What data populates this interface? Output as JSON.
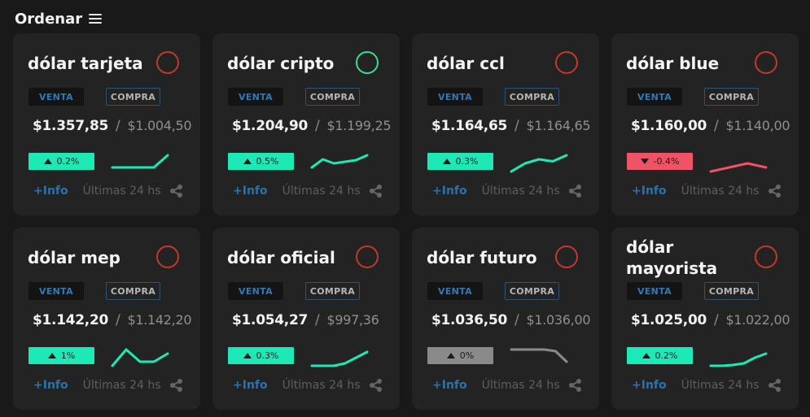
{
  "header": {
    "title": "Ordenar",
    "menu_icon": "hamburger-menu-icon"
  },
  "colors": {
    "up": "#1de9b6",
    "down": "#ef5465",
    "flat": "#8a8a8a",
    "fav_off": "#c0392b",
    "fav_on": "#3ddc84",
    "link": "#2a72ad"
  },
  "labels": {
    "venta": "VENTA",
    "compra": "COMPRA",
    "info": "+Info",
    "period": "Últimas 24 hs"
  },
  "cards": [
    {
      "title": "dólar tarjeta",
      "favorite": false,
      "venta": "$1.357,85",
      "compra": "$1.004,50",
      "change": "0.2%",
      "trend": "up",
      "spark": [
        2,
        2,
        2,
        2,
        5
      ]
    },
    {
      "title": "dólar cripto",
      "favorite": true,
      "venta": "$1.204,90",
      "compra": "$1.199,25",
      "change": "0.5%",
      "trend": "up",
      "spark": [
        2,
        4,
        3,
        3.4,
        3.8,
        5
      ]
    },
    {
      "title": "dólar ccl",
      "favorite": false,
      "venta": "$1.164,65",
      "compra": "$1.164,65",
      "change": "0.3%",
      "trend": "up",
      "spark": [
        1,
        3,
        4,
        3.5,
        5
      ]
    },
    {
      "title": "dólar blue",
      "favorite": false,
      "venta": "$1.160,00",
      "compra": "$1.140,00",
      "change": "-0.4%",
      "trend": "down",
      "spark": [
        1,
        2,
        3,
        2
      ]
    },
    {
      "title": "dólar mep",
      "favorite": false,
      "venta": "$1.142,20",
      "compra": "$1.142,20",
      "change": "1%",
      "trend": "up",
      "spark": [
        1,
        5,
        2,
        2,
        4
      ]
    },
    {
      "title": "dólar oficial",
      "favorite": false,
      "venta": "$1.054,27",
      "compra": "$997,36",
      "change": "0.3%",
      "trend": "up",
      "spark": [
        1,
        1,
        1,
        1.6,
        3,
        4.4
      ]
    },
    {
      "title": "dólar futuro",
      "favorite": false,
      "venta": "$1.036,50",
      "compra": "$1.036,00",
      "change": "0%",
      "trend": "flat",
      "spark": [
        5,
        5,
        5,
        5,
        4.6,
        2
      ]
    },
    {
      "title": "dólar mayorista",
      "favorite": false,
      "venta": "$1.025,00",
      "compra": "$1.022,00",
      "change": "0.2%",
      "trend": "up",
      "spark": [
        1,
        1,
        1.2,
        1.6,
        3,
        4
      ]
    }
  ]
}
